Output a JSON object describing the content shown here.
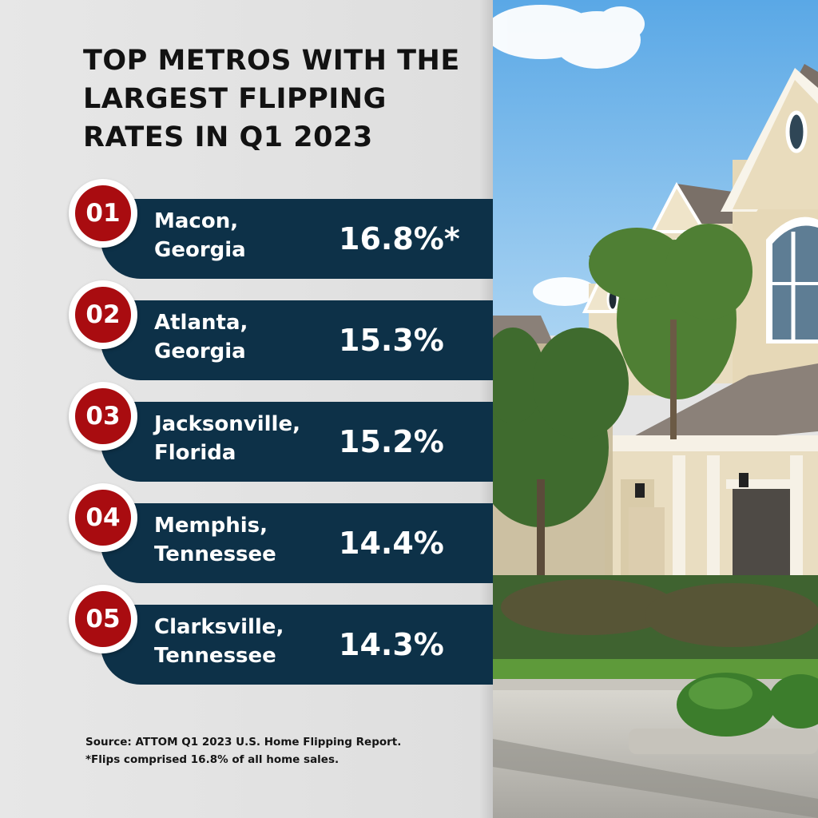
{
  "title": {
    "line1": "TOP METROS WITH THE",
    "line2": "LARGEST FLIPPING",
    "line3": "RATES IN Q1 2023"
  },
  "metros": [
    {
      "rank": "01",
      "city": "Macon,",
      "state": "Georgia",
      "rate": "16.8%*"
    },
    {
      "rank": "02",
      "city": "Atlanta,",
      "state": "Georgia",
      "rate": "15.3%"
    },
    {
      "rank": "03",
      "city": "Jacksonville,",
      "state": "Florida",
      "rate": "15.2%"
    },
    {
      "rank": "04",
      "city": "Memphis,",
      "state": "Tennessee",
      "rate": "14.4%"
    },
    {
      "rank": "05",
      "city": "Clarksville,",
      "state": "Tennessee",
      "rate": "14.3%"
    }
  ],
  "source": {
    "line1": "Source: ATTOM Q1 2023 U.S. Home Flipping Report.",
    "line2": "*Flips comprised 16.8% of all home sales."
  },
  "colors": {
    "badge": "#a90c10",
    "bar": "#0d3148",
    "panel": "#e4e4e4"
  }
}
